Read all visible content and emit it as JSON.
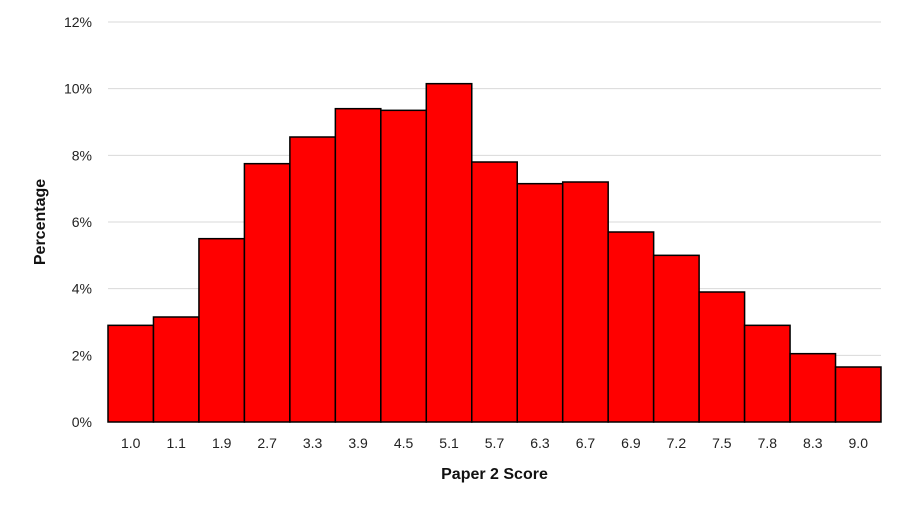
{
  "chart_data": {
    "type": "bar",
    "title": "",
    "xlabel": "Paper 2 Score",
    "ylabel": "Percentage",
    "categories": [
      "1.0",
      "1.1",
      "1.9",
      "2.7",
      "3.3",
      "3.9",
      "4.5",
      "5.1",
      "5.7",
      "6.3",
      "6.7",
      "6.9",
      "7.2",
      "7.5",
      "7.8",
      "8.3",
      "9.0"
    ],
    "values": [
      2.9,
      3.15,
      5.5,
      7.75,
      8.55,
      9.4,
      9.35,
      10.15,
      7.8,
      7.15,
      7.2,
      5.7,
      5.0,
      3.9,
      2.9,
      2.05,
      1.65
    ],
    "ylim": [
      0,
      12
    ],
    "yticks": [
      0,
      2,
      4,
      6,
      8,
      10,
      12
    ],
    "ytick_suffix": "%",
    "grid": true,
    "legend": "none",
    "bar_color": "#ff0000",
    "bar_edge_color": "#000000",
    "grid_color": "#d9d9d9"
  }
}
